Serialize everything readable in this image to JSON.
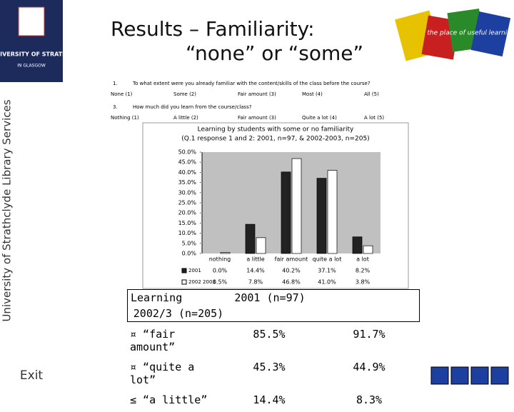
{
  "header": {
    "title_line1": "Results – Familiarity:",
    "title_line2": "“none” or “some”",
    "logo_text": "THE UNIVERSITY OF STRATHCLYDE",
    "logo_sub": "IN GLASGOW",
    "banner_text": "the place of useful learning"
  },
  "sidebar": {
    "vertical_text": "University of Strathclyde Library Services",
    "exit": "Exit"
  },
  "questions": [
    {
      "number": "1.",
      "text": "To what extent were you already familiar with the content/skills of the class before the course?",
      "options": [
        "None (1)",
        "Some (2)",
        "Fair amount (3)",
        "Most (4)",
        "All (5)"
      ]
    },
    {
      "number": "3.",
      "text": "How much did you learn from the course/class?",
      "options": [
        "Nothing (1)",
        "A little (2)",
        "Fair amount (3)",
        "Quite a lot (4)",
        "A lot (5)"
      ]
    }
  ],
  "chart_data": {
    "type": "bar",
    "title": "Learning by students with some or no familiarity",
    "subtitle": "(Q.1 response 1 and 2: 2001, n=97, & 2002-2003, n=205)",
    "categories": [
      "nothing",
      "a little",
      "fair amount",
      "quite a lot",
      "a lot"
    ],
    "series": [
      {
        "name": "2001",
        "color": "#222222",
        "values": [
          0.0,
          14.4,
          40.2,
          37.1,
          8.2
        ],
        "value_labels": [
          "0.0%",
          "14.4%",
          "40.2%",
          "37.1%",
          "8.2%"
        ]
      },
      {
        "name": "2002 2003",
        "color": "#ffffff",
        "values": [
          0.5,
          7.8,
          46.8,
          41.0,
          3.8
        ],
        "value_labels": [
          "0.5%",
          "7.8%",
          "46.8%",
          "41.0%",
          "3.8%"
        ]
      }
    ],
    "ylim": [
      0,
      50
    ],
    "yticks": [
      {
        "value": 0,
        "label": "0.0%"
      },
      {
        "value": 5,
        "label": "5.0%"
      },
      {
        "value": 10,
        "label": "10.0%"
      },
      {
        "value": 15,
        "label": "15.0%"
      },
      {
        "value": 20,
        "label": "20.0%"
      },
      {
        "value": 25,
        "label": "25.0%"
      },
      {
        "value": 30,
        "label": "30.0%"
      },
      {
        "value": 35,
        "label": "35.0%"
      },
      {
        "value": 40,
        "label": "40.0%"
      },
      {
        "value": 45,
        "label": "45.0%"
      },
      {
        "value": 50,
        "label": "50.0%"
      }
    ]
  },
  "table": {
    "header": [
      "Learning",
      "2001 (n=97)",
      "2002/3 (n=205)"
    ],
    "rows": [
      [
        "¤ “fair amount”",
        "85.5%",
        "91.7%"
      ],
      [
        "¤ “quite a lot”",
        "45.3%",
        "44.9%"
      ],
      [
        "≤ “a little”",
        "14.4%",
        "8.3%"
      ]
    ]
  }
}
